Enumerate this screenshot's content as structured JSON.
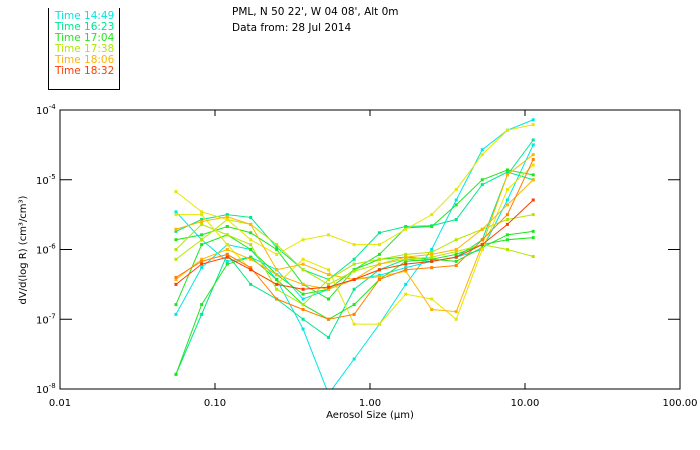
{
  "title_line1": "PML, N 50 22', W 04 08', Alt 0m",
  "title_line2": "Data from: 28 Jul 2014",
  "legend": [
    {
      "label": "Time 14:49",
      "color": "#00e6e6"
    },
    {
      "label": "Time 16:23",
      "color": "#00e68c"
    },
    {
      "label": "Time 17:04",
      "color": "#1ee61e"
    },
    {
      "label": "Time 17:38",
      "color": "#b4e600"
    },
    {
      "label": "Time 18:06",
      "color": "#ffb400"
    },
    {
      "label": "Time 18:32",
      "color": "#ff3c00"
    }
  ],
  "chart_data": {
    "type": "line",
    "xlabel": "Aerosol Size (µm)",
    "ylabel": "dV/d(log R) (cm³/cm³)",
    "xscale": "log",
    "yscale": "log",
    "xlim": [
      0.01,
      100
    ],
    "ylim": [
      1e-08,
      0.0001
    ],
    "xticks": [
      {
        "v": 0.01,
        "label": "0.01"
      },
      {
        "v": 0.1,
        "label": "0.10"
      },
      {
        "v": 1,
        "label": "1.00"
      },
      {
        "v": 10,
        "label": "10.00"
      },
      {
        "v": 100,
        "label": "100.00"
      }
    ],
    "yticks": [
      {
        "v": -4,
        "base": "10",
        "exp": "-4"
      },
      {
        "v": -5,
        "base": "10",
        "exp": "-5"
      },
      {
        "v": -6,
        "base": "10",
        "exp": "-6"
      },
      {
        "v": -7,
        "base": "10",
        "exp": "-7"
      },
      {
        "v": -8,
        "base": "10",
        "exp": "-8"
      }
    ],
    "x": [
      0.056,
      0.082,
      0.12,
      0.17,
      0.25,
      0.37,
      0.54,
      0.79,
      1.15,
      1.7,
      2.5,
      3.6,
      5.3,
      7.7,
      11.3
    ],
    "y_unit_note": "values given as log10(dV/dlogR)",
    "series": [
      {
        "color": "#00e6e6",
        "log10_y": [
          -5.46,
          -5.86,
          -6.17,
          -6.11,
          -6.29,
          -6.71,
          -6.57,
          -6.43,
          -6.37,
          -6.26,
          -6.17,
          -6.11,
          -6.0,
          -5.29,
          -4.5
        ]
      },
      {
        "color": "#00e6e6",
        "log10_y": [
          -6.93,
          -6.26,
          -5.93,
          -6.0,
          -6.43,
          -7.14,
          -8.07,
          -7.57,
          -7.07,
          -6.5,
          -6.0,
          -5.29,
          -4.57,
          -4.29,
          -4.14
        ]
      },
      {
        "color": "#00e68c",
        "log10_y": [
          -7.79,
          -6.93,
          -6.07,
          -6.5,
          -6.71,
          -7.0,
          -7.26,
          -6.57,
          -6.29,
          -6.14,
          -6.17,
          -6.11,
          -5.86,
          -4.93,
          -4.43
        ]
      },
      {
        "color": "#00e68c",
        "log10_y": [
          -5.74,
          -5.57,
          -5.5,
          -5.54,
          -5.97,
          -6.29,
          -6.43,
          -6.14,
          -5.76,
          -5.67,
          -5.66,
          -5.57,
          -5.07,
          -4.89,
          -5.0
        ]
      },
      {
        "color": "#1ee61e",
        "log10_y": [
          -5.86,
          -5.79,
          -5.67,
          -5.76,
          -6.0,
          -6.5,
          -6.71,
          -6.29,
          -6.07,
          -5.69,
          -5.67,
          -5.36,
          -5.0,
          -4.86,
          -4.93
        ]
      },
      {
        "color": "#1ee61e",
        "log10_y": [
          -6.79,
          -5.93,
          -5.79,
          -6.0,
          -6.36,
          -6.64,
          -6.57,
          -6.29,
          -6.14,
          -6.11,
          -6.14,
          -6.07,
          -5.93,
          -5.86,
          -5.83
        ]
      },
      {
        "color": "#1ee61e",
        "log10_y": [
          -7.79,
          -6.79,
          -6.21,
          -6.11,
          -6.43,
          -6.79,
          -7.0,
          -6.79,
          -6.43,
          -6.17,
          -6.14,
          -6.17,
          -5.97,
          -5.79,
          -5.74
        ]
      },
      {
        "color": "#b4e600",
        "log10_y": [
          -6.0,
          -5.64,
          -5.79,
          -5.93,
          -6.57,
          -6.79,
          -6.43,
          -6.21,
          -6.14,
          -6.07,
          -6.04,
          -5.86,
          -5.71,
          -5.57,
          -5.5
        ]
      },
      {
        "color": "#b4e600",
        "log10_y": [
          -6.14,
          -5.86,
          -5.57,
          -5.64,
          -5.93,
          -6.29,
          -6.5,
          -6.31,
          -6.21,
          -6.14,
          -6.11,
          -6.03,
          -5.93,
          -6.0,
          -6.1
        ]
      },
      {
        "color": "#e6e600",
        "log10_y": [
          -5.17,
          -5.46,
          -5.57,
          -5.86,
          -6.07,
          -5.86,
          -5.79,
          -5.93,
          -5.93,
          -5.71,
          -5.5,
          -5.14,
          -4.64,
          -4.29,
          -4.21
        ]
      },
      {
        "color": "#e6e600",
        "log10_y": [
          -5.5,
          -5.5,
          -5.93,
          -6.29,
          -6.5,
          -6.14,
          -6.29,
          -7.07,
          -7.07,
          -6.64,
          -6.71,
          -7.0,
          -6.0,
          -5.14,
          -4.79
        ]
      },
      {
        "color": "#ffb400",
        "log10_y": [
          -5.71,
          -5.6,
          -5.53,
          -5.64,
          -6.29,
          -6.21,
          -6.36,
          -6.43,
          -6.39,
          -6.31,
          -6.86,
          -6.89,
          -5.93,
          -4.93,
          -4.64
        ]
      },
      {
        "color": "#ffb400",
        "log10_y": [
          -6.43,
          -6.14,
          -6.0,
          -6.14,
          -6.36,
          -6.5,
          -6.57,
          -6.43,
          -6.21,
          -6.11,
          -6.07,
          -6.0,
          -5.71,
          -5.36,
          -5.0
        ]
      },
      {
        "color": "#ff8000",
        "log10_y": [
          -6.4,
          -6.17,
          -6.07,
          -6.26,
          -6.71,
          -6.86,
          -7.0,
          -6.93,
          -6.43,
          -6.29,
          -6.26,
          -6.23,
          -5.86,
          -5.5,
          -4.71
        ]
      },
      {
        "color": "#ff3c00",
        "log10_y": [
          -6.5,
          -6.21,
          -6.11,
          -6.29,
          -6.5,
          -6.57,
          -6.54,
          -6.43,
          -6.29,
          -6.21,
          -6.17,
          -6.11,
          -5.93,
          -5.64,
          -5.29
        ]
      }
    ]
  }
}
